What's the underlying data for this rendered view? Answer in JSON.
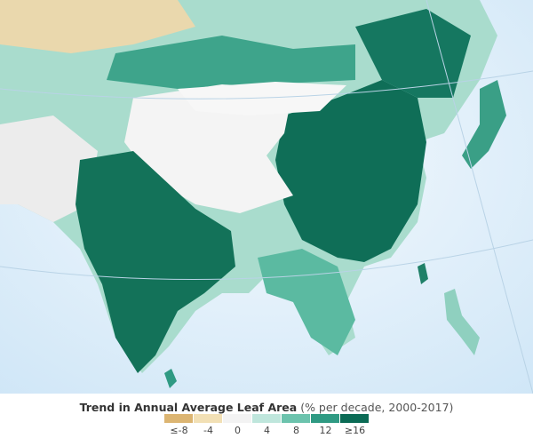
{
  "legend": {
    "title": "Trend in Annual Average Leaf Area",
    "subtitle": "(% per decade, 2000-2017)",
    "bins": [
      {
        "label": "≤-8",
        "color": "#dcb572"
      },
      {
        "label": "-4",
        "color": "#f2e0b5"
      },
      {
        "label": "0",
        "color": "#f3f3f3"
      },
      {
        "label": "4",
        "color": "#bfe6dc"
      },
      {
        "label": "8",
        "color": "#6cc3ad"
      },
      {
        "label": "12",
        "color": "#2f9a83"
      },
      {
        "label": "≥16",
        "color": "#0b6b55"
      }
    ]
  },
  "map": {
    "region": "Asia (China and India)",
    "ocean_color": "#d7ebf8",
    "land_green": "#0f6e57",
    "land_light": "#8fd0bf",
    "barren_color": "#f5f5f5"
  }
}
